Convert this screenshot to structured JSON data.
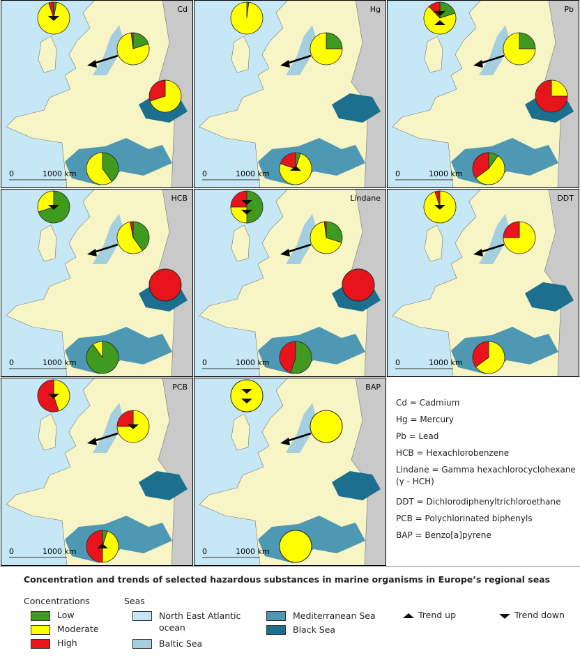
{
  "title": "Concentration and trends of selected hazardous substances in marine organisms in Europe’s regional seas",
  "scale_bar": {
    "start": "0",
    "end": "1000 km"
  },
  "concentrations": {
    "heading": "Concentrations",
    "items": [
      {
        "name": "Low",
        "color": "#3f9a1f"
      },
      {
        "name": "Moderate",
        "color": "#ffff00"
      },
      {
        "name": "High",
        "color": "#e8141b"
      }
    ]
  },
  "seas": {
    "heading": "Seas",
    "items": [
      {
        "name": "North East Atlantic ocean",
        "color": "#c6e8f6"
      },
      {
        "name": "Baltic Sea",
        "color": "#a3cfe0"
      },
      {
        "name": "Mediterranean Sea",
        "color": "#4f98b4"
      },
      {
        "name": "Black Sea",
        "color": "#1c6f8f"
      }
    ]
  },
  "trend_legend": [
    {
      "name": "Trend up",
      "direction": "up"
    },
    {
      "name": "Trend down",
      "direction": "down"
    }
  ],
  "panels": [
    {
      "label": "Cd",
      "pies": {
        "atlantic": {
          "values": [
            3,
            92,
            5
          ],
          "trends": [
            "down"
          ]
        },
        "baltic": {
          "values": [
            20,
            78,
            2
          ],
          "trends": []
        },
        "black": {
          "values": [
            0,
            70,
            30
          ],
          "trends": []
        },
        "mediterranean": {
          "values": [
            40,
            60,
            0
          ],
          "trends": []
        }
      }
    },
    {
      "label": "Hg",
      "pies": {
        "atlantic": {
          "values": [
            2,
            98,
            0
          ],
          "trends": []
        },
        "baltic": {
          "values": [
            25,
            75,
            0
          ],
          "trends": []
        },
        "mediterranean": {
          "values": [
            5,
            75,
            20
          ],
          "trends": [
            "up"
          ]
        }
      }
    },
    {
      "label": "Pb",
      "pies": {
        "atlantic": {
          "values": [
            20,
            68,
            12
          ],
          "trends": [
            "down",
            "up"
          ]
        },
        "baltic": {
          "values": [
            25,
            75,
            0
          ],
          "trends": []
        },
        "black": {
          "values": [
            0,
            25,
            75
          ],
          "trends": []
        },
        "mediterranean": {
          "values": [
            10,
            55,
            35
          ],
          "trends": []
        }
      }
    },
    {
      "label": "HCB",
      "pies": {
        "atlantic": {
          "values": [
            70,
            30,
            0
          ],
          "trends": [
            "down"
          ]
        },
        "baltic": {
          "values": [
            40,
            57,
            3
          ],
          "trends": []
        },
        "black": {
          "values": [
            0,
            0,
            100
          ],
          "trends": []
        },
        "mediterranean": {
          "values": [
            90,
            10,
            0
          ],
          "trends": []
        }
      }
    },
    {
      "label": "Lindane",
      "pies": {
        "atlantic": {
          "values": [
            50,
            25,
            25
          ],
          "trends": [
            "down",
            "down"
          ]
        },
        "baltic": {
          "values": [
            30,
            68,
            2
          ],
          "trends": []
        },
        "black": {
          "values": [
            0,
            0,
            100
          ],
          "trends": []
        },
        "mediterranean": {
          "values": [
            55,
            0,
            45
          ],
          "trends": []
        }
      }
    },
    {
      "label": "DDT",
      "pies": {
        "atlantic": {
          "values": [
            0,
            95,
            5
          ],
          "trends": [
            "down"
          ]
        },
        "baltic": {
          "values": [
            0,
            75,
            25
          ],
          "trends": []
        },
        "mediterranean": {
          "values": [
            0,
            65,
            35
          ],
          "trends": []
        }
      }
    },
    {
      "label": "PCB",
      "pies": {
        "atlantic": {
          "values": [
            0,
            45,
            55
          ],
          "trends": [
            "down"
          ]
        },
        "baltic": {
          "values": [
            0,
            75,
            25
          ],
          "trends": [
            "down"
          ]
        },
        "mediterranean": {
          "values": [
            5,
            45,
            50
          ],
          "trends": [
            "up"
          ]
        }
      }
    },
    {
      "label": "BAP",
      "pies": {
        "atlantic": {
          "values": [
            0,
            100,
            0
          ],
          "trends": [
            "down",
            "down"
          ]
        },
        "baltic": {
          "values": [
            0,
            100,
            0
          ],
          "trends": []
        },
        "mediterranean": {
          "values": [
            0,
            100,
            0
          ],
          "trends": []
        }
      }
    }
  ],
  "abbreviations": [
    "Cd = Cadmium",
    "Hg = Mercury",
    "Pb = Lead",
    "HCB = Hexachlorobenzene",
    "Lindane = Gamma hexachlorocyclohexane (γ - HCH)",
    "DDT = Dichlorodiphenyltrichloroethane",
    "PCB = Polychlorinated biphenyls",
    "BAP = Benzo[a]pyrene"
  ]
}
